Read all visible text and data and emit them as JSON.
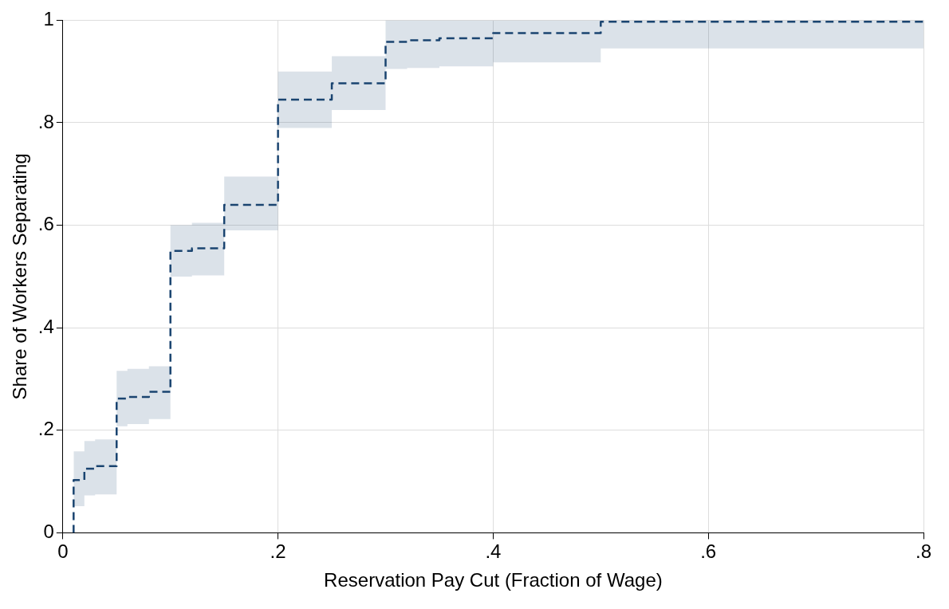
{
  "chart_data": {
    "type": "step",
    "xlabel": "Reservation Pay Cut (Fraction of Wage)",
    "ylabel": "Share of Workers Separating",
    "xlim": [
      0,
      0.8
    ],
    "ylim": [
      0,
      1
    ],
    "xticks": [
      0,
      {
        "value": 0.2,
        "label": ".2"
      },
      {
        "value": 0.4,
        "label": ".4"
      },
      {
        "value": 0.6,
        "label": ".6"
      },
      {
        "value": 0.8,
        "label": ".8"
      }
    ],
    "yticks": [
      0,
      {
        "value": 0.2,
        "label": ".2"
      },
      {
        "value": 0.4,
        "label": ".4"
      },
      {
        "value": 0.6,
        "label": ".6"
      },
      {
        "value": 0.8,
        "label": ".8"
      },
      1
    ],
    "grid": true,
    "legend": false,
    "line_style": "dashed",
    "marker": "none",
    "series": [
      {
        "color": "#1a4470",
        "x": [
          0.01,
          0.01,
          0.02,
          0.03,
          0.05,
          0.06,
          0.08,
          0.1,
          0.12,
          0.15,
          0.2,
          0.25,
          0.3,
          0.32,
          0.35,
          0.4,
          0.5,
          0.8
        ],
        "values": [
          0,
          0.103,
          0.125,
          0.13,
          0.262,
          0.265,
          0.275,
          0.55,
          0.555,
          0.64,
          0.845,
          0.877,
          0.958,
          0.961,
          0.965,
          0.975,
          0.997,
          1.0
        ],
        "lower": [
          0.052,
          0.052,
          0.073,
          0.075,
          0.208,
          0.212,
          0.222,
          0.5,
          0.502,
          0.59,
          0.79,
          0.825,
          0.905,
          0.907,
          0.91,
          0.918,
          0.945,
          0.945
        ],
        "upper": [
          0.159,
          0.159,
          0.179,
          0.182,
          0.316,
          0.32,
          0.325,
          0.6,
          0.605,
          0.695,
          0.9,
          0.93,
          1,
          1,
          1,
          1,
          1,
          1
        ]
      }
    ]
  }
}
